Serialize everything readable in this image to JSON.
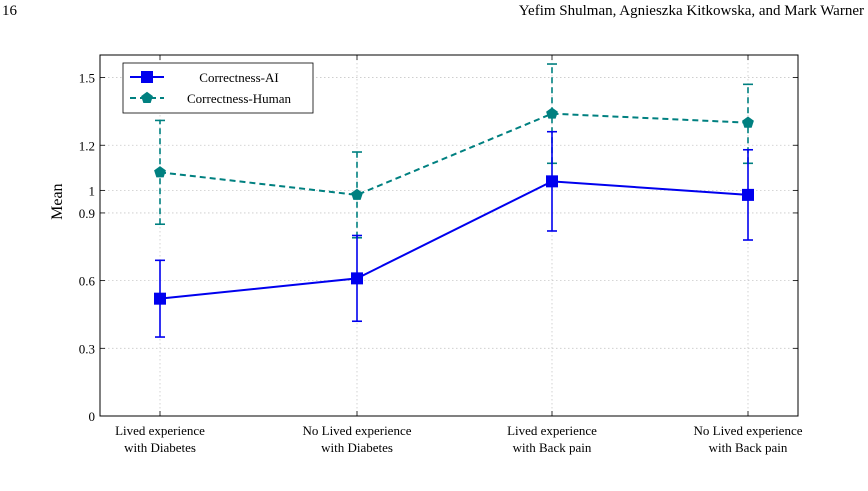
{
  "header": {
    "page_number": "16",
    "authors": "Yefim Shulman, Agnieszka Kitkowska, and Mark Warner"
  },
  "chart_data": {
    "type": "line",
    "title": "",
    "xlabel": "",
    "ylabel": "Mean",
    "categories": [
      [
        "Lived experience",
        "with Diabetes"
      ],
      [
        "No Lived experience",
        "with Diabetes"
      ],
      [
        "Lived experience",
        "with Back pain"
      ],
      [
        "No Lived experience",
        "with Back pain"
      ]
    ],
    "ylim": [
      0,
      1.6
    ],
    "yticks": [
      0,
      0.3,
      0.6,
      0.9,
      1,
      1.2,
      1.5
    ],
    "ytick_labels": [
      "0",
      "0.3",
      "0.6",
      "0.9",
      "1",
      "1.2",
      "1.5"
    ],
    "grid": true,
    "legend_position": "top-left",
    "series": [
      {
        "name": "Correctness-AI",
        "color": "#0000ee",
        "line_style": "solid",
        "marker": "square",
        "values": [
          0.52,
          0.61,
          1.04,
          0.98
        ],
        "error_low": [
          0.35,
          0.42,
          0.82,
          0.78
        ],
        "error_high": [
          0.69,
          0.8,
          1.26,
          1.18
        ]
      },
      {
        "name": "Correctness-Human",
        "color": "#008080",
        "line_style": "dashed",
        "marker": "pentagon",
        "values": [
          1.08,
          0.98,
          1.34,
          1.3
        ],
        "error_low": [
          0.85,
          0.79,
          1.12,
          1.12
        ],
        "error_high": [
          1.31,
          1.17,
          1.56,
          1.47
        ]
      }
    ]
  }
}
